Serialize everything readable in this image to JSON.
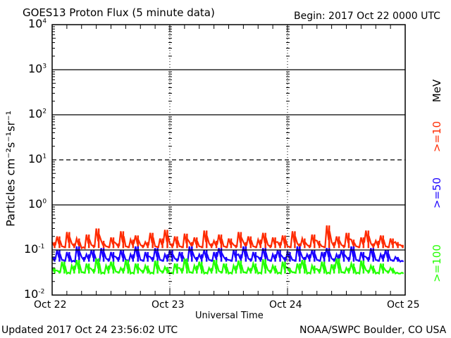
{
  "chart_data": {
    "type": "line",
    "title": "GOES13 Proton Flux (5 minute data)",
    "begin": "Begin: 2017 Oct 22 0000 UTC",
    "xlabel": "Universal Time",
    "ylabel": "Particles cm⁻²s⁻¹sr⁻¹",
    "yscale": "log",
    "ylim": [
      0.01,
      10000
    ],
    "ytick_labels": [
      {
        "base": "10",
        "exp": "4",
        "value": 10000
      },
      {
        "base": "10",
        "exp": "3",
        "value": 1000
      },
      {
        "base": "10",
        "exp": "2",
        "value": 100
      },
      {
        "base": "10",
        "exp": "1",
        "value": 10
      },
      {
        "base": "10",
        "exp": "0",
        "value": 1
      },
      {
        "base": "10",
        "exp": "-1",
        "value": 0.1
      },
      {
        "base": "10",
        "exp": "-2",
        "value": 0.01
      }
    ],
    "xtick_labels": [
      "Oct 22",
      "Oct 23",
      "Oct 24",
      "Oct 25"
    ],
    "x_hours_range": [
      0,
      72
    ],
    "units_label": "MeV",
    "series": [
      {
        "name": ">=10",
        "color": "#ff2a00",
        "values": [
          0.15,
          0.2,
          0.12,
          0.25,
          0.14,
          0.18,
          0.11,
          0.22,
          0.13,
          0.3,
          0.16,
          0.12,
          0.19,
          0.14,
          0.26,
          0.12,
          0.17,
          0.21,
          0.13,
          0.15,
          0.24,
          0.12,
          0.18,
          0.28,
          0.14,
          0.2,
          0.12,
          0.23,
          0.15,
          0.19,
          0.12,
          0.27,
          0.14,
          0.16,
          0.22,
          0.12,
          0.18,
          0.13,
          0.25,
          0.15,
          0.2,
          0.12,
          0.17,
          0.24,
          0.13,
          0.19,
          0.15,
          0.21,
          0.12,
          0.26,
          0.14,
          0.18,
          0.13,
          0.22,
          0.16,
          0.12,
          0.35,
          0.15,
          0.2,
          0.13,
          0.24,
          0.17,
          0.12,
          0.19,
          0.27,
          0.14,
          0.16,
          0.21,
          0.12,
          0.18,
          0.15,
          0.13
        ]
      },
      {
        "name": ">=50",
        "color": "#1a00ff",
        "values": [
          0.07,
          0.1,
          0.06,
          0.09,
          0.055,
          0.12,
          0.07,
          0.08,
          0.1,
          0.06,
          0.11,
          0.065,
          0.09,
          0.07,
          0.1,
          0.06,
          0.08,
          0.12,
          0.06,
          0.09,
          0.07,
          0.11,
          0.06,
          0.08,
          0.1,
          0.065,
          0.09,
          0.06,
          0.12,
          0.07,
          0.08,
          0.1,
          0.06,
          0.09,
          0.11,
          0.07,
          0.06,
          0.1,
          0.08,
          0.12,
          0.065,
          0.09,
          0.07,
          0.11,
          0.06,
          0.08,
          0.1,
          0.07,
          0.09,
          0.06,
          0.12,
          0.07,
          0.08,
          0.1,
          0.06,
          0.09,
          0.11,
          0.065,
          0.08,
          0.1,
          0.07,
          0.12,
          0.06,
          0.09,
          0.07,
          0.11,
          0.06,
          0.08,
          0.1,
          0.06,
          0.07,
          0.055
        ]
      },
      {
        "name": ">=100",
        "color": "#22ff00",
        "values": [
          0.04,
          0.035,
          0.055,
          0.03,
          0.045,
          0.06,
          0.032,
          0.05,
          0.038,
          0.065,
          0.03,
          0.045,
          0.055,
          0.033,
          0.04,
          0.06,
          0.03,
          0.05,
          0.036,
          0.045,
          0.03,
          0.058,
          0.035,
          0.042,
          0.03,
          0.05,
          0.04,
          0.065,
          0.032,
          0.045,
          0.055,
          0.03,
          0.04,
          0.06,
          0.034,
          0.05,
          0.03,
          0.045,
          0.058,
          0.032,
          0.04,
          0.05,
          0.03,
          0.062,
          0.036,
          0.045,
          0.03,
          0.055,
          0.04,
          0.032,
          0.05,
          0.06,
          0.03,
          0.045,
          0.038,
          0.055,
          0.03,
          0.048,
          0.065,
          0.032,
          0.04,
          0.05,
          0.03,
          0.058,
          0.036,
          0.045,
          0.03,
          0.05,
          0.035,
          0.04,
          0.03,
          0.03
        ]
      }
    ]
  },
  "footer": {
    "updated": "Updated 2017 Oct 24 23:56:02 UTC",
    "source": "NOAA/SWPC Boulder, CO USA"
  }
}
